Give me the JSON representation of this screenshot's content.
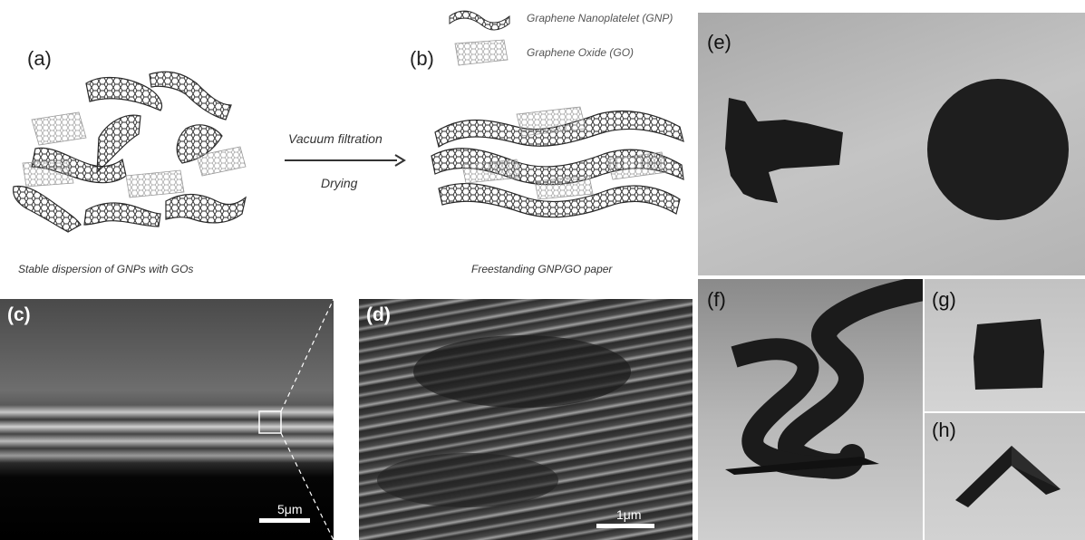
{
  "schematic": {
    "label_a": "(a)",
    "label_b": "(b)",
    "legend": {
      "gnp": "Graphene Nanoplatelet (GNP)",
      "go": "Graphene Oxide (GO)"
    },
    "process_top": "Vacuum filtration",
    "process_bottom": "Drying",
    "caption_left": "Stable dispersion of GNPs with GOs",
    "caption_right": "Freestanding GNP/GO paper"
  },
  "sem": {
    "label_c": "(c)",
    "label_d": "(d)",
    "scale_c": "5μm",
    "scale_d": "1μm"
  },
  "photos": {
    "label_e": "(e)",
    "label_f": "(f)",
    "label_g": "(g)",
    "label_h": "(h)"
  },
  "colors": {
    "gnp_stroke": "#2a2a2a",
    "go_stroke": "#9a9a9a",
    "photo_bg": "#bdbdbd",
    "paper_black": "#1b1b1b"
  }
}
